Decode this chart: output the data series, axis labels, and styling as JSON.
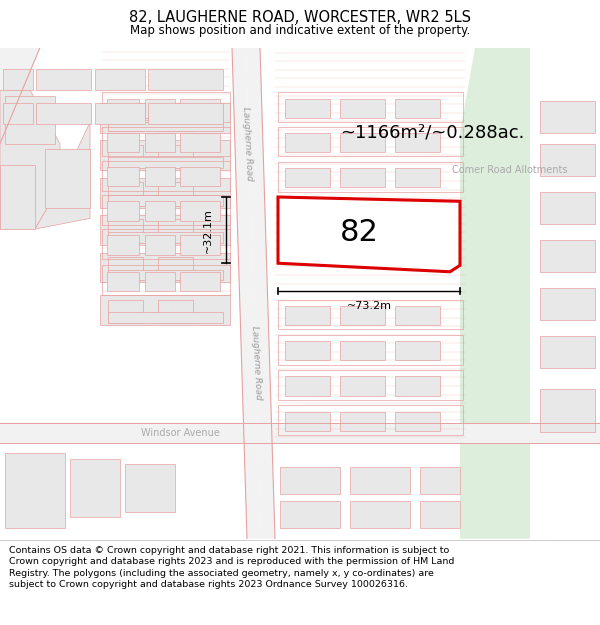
{
  "title": "82, LAUGHERNE ROAD, WORCESTER, WR2 5LS",
  "subtitle": "Map shows position and indicative extent of the property.",
  "title_fontsize": 10.5,
  "subtitle_fontsize": 8.5,
  "footer_text": "Contains OS data © Crown copyright and database right 2021. This information is subject to Crown copyright and database rights 2023 and is reproduced with the permission of HM Land Registry. The polygons (including the associated geometry, namely x, y co-ordinates) are subject to Crown copyright and database rights 2023 Ordnance Survey 100026316.",
  "map_bg": "#f7f7f7",
  "building_fill": "#e8e8e8",
  "building_edge": "#e8a0a0",
  "road_color": "#e8a0a0",
  "green_fill": "#ddeedd",
  "highlight_fill": "white",
  "highlight_edge": "#dd0000",
  "area_text": "~1166m²/~0.288ac.",
  "width_text": "~73.2m",
  "height_text": "~32.1m",
  "property_label": "82",
  "road_label": "Laugherne Road",
  "allotment_label": "Comer Road Allotments",
  "windsor_label": "Windsor Avenue",
  "footer_fontsize": 6.8
}
